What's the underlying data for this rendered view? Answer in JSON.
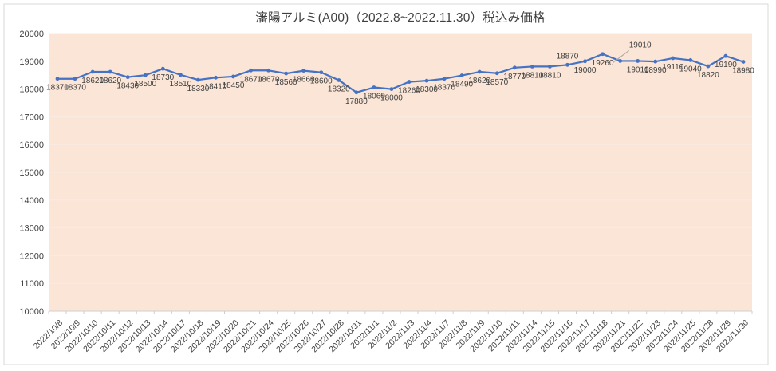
{
  "chart_data": {
    "type": "line",
    "title": "瀋陽アルミ(A00)（2022.8~2022.11.30）税込み価格",
    "categories": [
      "2022/10/8",
      "2022/10/9",
      "2022/10/10",
      "2022/10/11",
      "2022/10/12",
      "2022/10/13",
      "2022/10/14",
      "2022/10/17",
      "2022/10/18",
      "2022/10/19",
      "2022/10/20",
      "2022/10/21",
      "2022/10/24",
      "2022/10/25",
      "2022/10/26",
      "2022/10/27",
      "2022/10/28",
      "2022/10/31",
      "2022/11/1",
      "2022/11/2",
      "2022/11/3",
      "2022/11/4",
      "2022/11/7",
      "2022/11/8",
      "2022/11/9",
      "2022/11/10",
      "2022/11/11",
      "2022/11/14",
      "2022/11/15",
      "2022/11/16",
      "2022/11/17",
      "2022/11/18",
      "2022/11/21",
      "2022/11/22",
      "2022/11/23",
      "2022/11/24",
      "2022/11/25",
      "2022/11/28",
      "2022/11/29",
      "2022/11/30"
    ],
    "values": [
      18370,
      18370,
      18620,
      18620,
      18430,
      18500,
      18730,
      18510,
      18330,
      18410,
      18450,
      18670,
      18670,
      18560,
      18660,
      18600,
      18320,
      17880,
      18060,
      18000,
      18260,
      18300,
      18370,
      18490,
      18620,
      18570,
      18770,
      18810,
      18810,
      18870,
      19000,
      19260,
      19010,
      19010,
      18990,
      19110,
      19040,
      18820,
      19190,
      18980
    ],
    "xlabel": "",
    "ylabel": "",
    "ylim": [
      10000,
      20000
    ],
    "ytick_step": 1000,
    "grid": true,
    "legend": "none",
    "data_labels": true,
    "label_positions": {
      "default": "below",
      "overrides": {
        "29": "above",
        "32": "above-leader"
      }
    },
    "colors": {
      "line": "#4472c4",
      "marker": "#4472c4",
      "plot_bg": "#fbe5d6",
      "chart_bg": "#ffffff",
      "gridline": "#f7ece3",
      "axis_line": "#d0cece",
      "chart_border": "#d9d9d9",
      "tick_text": "#404040",
      "data_label_text": "#404040",
      "title_text": "#404040",
      "leader_line": "#a6a6a6"
    }
  }
}
